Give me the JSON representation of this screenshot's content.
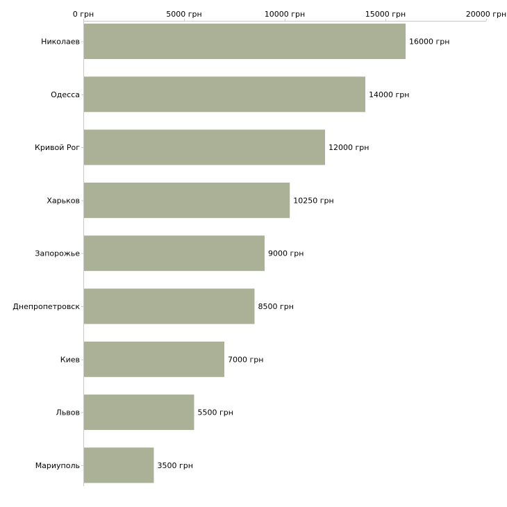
{
  "chart_data": {
    "type": "bar",
    "orientation": "horizontal",
    "categories": [
      "Николаев",
      "Одесса",
      "Кривой Рог",
      "Харьков",
      "Запорожье",
      "Днепропетровск",
      "Киев",
      "Львов",
      "Мариуполь"
    ],
    "values": [
      16000,
      14000,
      12000,
      10250,
      9000,
      8500,
      7000,
      5500,
      3500
    ],
    "value_labels": [
      "16000 грн",
      "14000 грн",
      "12000 грн",
      "10250 грн",
      "9000 грн",
      "8500 грн",
      "7000 грн",
      "5500 грн",
      "3500 грн"
    ],
    "x_ticks": [
      0,
      5000,
      10000,
      15000,
      20000
    ],
    "x_tick_labels": [
      "0 грн",
      "5000 грн",
      "10000 грн",
      "15000 грн",
      "20000 грн"
    ],
    "xlim": [
      0,
      20000
    ],
    "x_axis_position": "top",
    "grid": false,
    "legend": "none",
    "title": "",
    "xlabel": "",
    "ylabel": "",
    "bar_color": "#abb196"
  }
}
